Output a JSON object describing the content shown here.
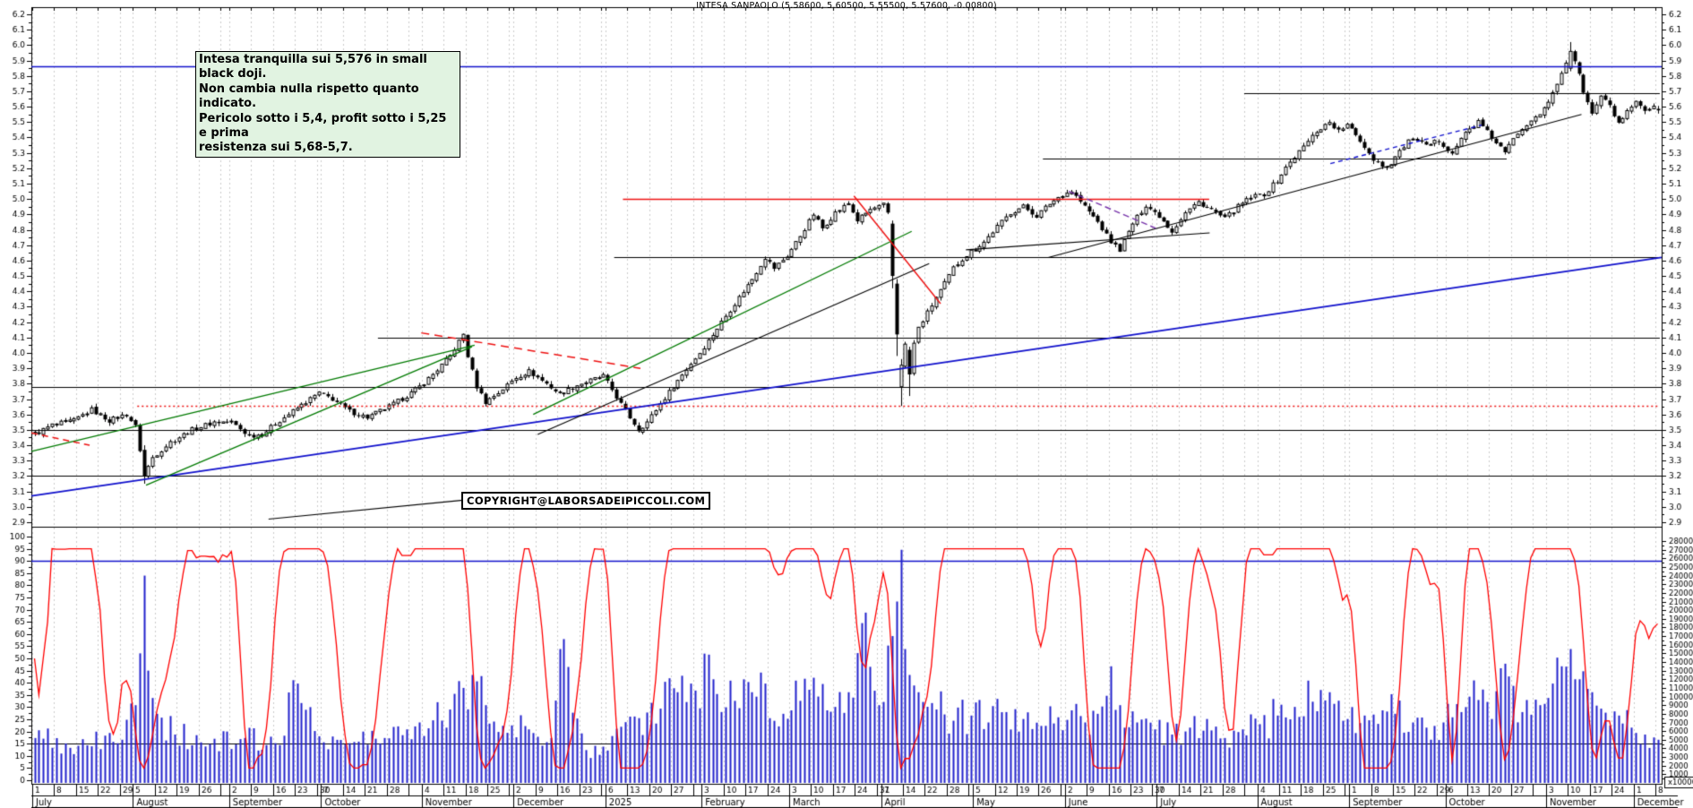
{
  "window": {
    "title": "INTESA SANPAOLO (5.58600, 5.60500, 5.55500, 5.57600, -0.00800)"
  },
  "annotation": {
    "text": "Intesa tranquilla sui 5,576 in small black doji.\nNon cambia nulla rispetto quanto indicato.\nPericolo sotto i 5,4, profit sotto i 5,25 e prima\nresistenza sui 5,68-5,7.",
    "background": "#e1f3e1"
  },
  "copyright": {
    "text": "COPYRIGHT@LABORSADEIPICCOLI.COM"
  },
  "chart_data": {
    "type": "candlestick",
    "symbol": "INTESA SANPAOLO",
    "last_quote": {
      "open": 5.586,
      "high": 5.605,
      "low": 5.555,
      "close": 5.576,
      "change": -0.008
    },
    "price_axis": {
      "min": 2.9,
      "max": 6.2,
      "step": 0.1
    },
    "oscillator_axis": {
      "min": 0,
      "max": 100,
      "step": 5
    },
    "volume_axis": {
      "min": 1000,
      "max": 28000,
      "step": 1000,
      "multiplier_label": "x10000"
    },
    "colors": {
      "candle": "#000000",
      "volume": "#2222cc",
      "oscillator": "#ff0000",
      "blue": "#1111cc",
      "green": "#007a00",
      "red": "#ee1111",
      "purple": "#7733aa",
      "grid": "#cccccc",
      "axis": "#000000"
    },
    "months": [
      {
        "label": "July",
        "days": 23,
        "weeks": [
          "1",
          "8",
          "15",
          "22",
          "29"
        ]
      },
      {
        "label": "August",
        "days": 22,
        "weeks": [
          "5",
          "12",
          "19",
          "26"
        ]
      },
      {
        "label": "September",
        "days": 21,
        "weeks": [
          "2",
          "9",
          "16",
          "23",
          "30"
        ]
      },
      {
        "label": "October",
        "days": 23,
        "weeks": [
          "7",
          "14",
          "21",
          "28"
        ]
      },
      {
        "label": "November",
        "days": 21,
        "weeks": [
          "4",
          "11",
          "18",
          "25"
        ]
      },
      {
        "label": "December",
        "days": 21,
        "weeks": [
          "2",
          "9",
          "16",
          "23"
        ]
      },
      {
        "label": "2025",
        "days": 22,
        "weeks": [
          "6",
          "13",
          "20",
          "27"
        ]
      },
      {
        "label": "February",
        "days": 20,
        "weeks": [
          "3",
          "10",
          "17",
          "24"
        ]
      },
      {
        "label": "March",
        "days": 21,
        "weeks": [
          "3",
          "10",
          "17",
          "24",
          "31"
        ]
      },
      {
        "label": "April",
        "days": 21,
        "weeks": [
          "7",
          "14",
          "22",
          "28"
        ]
      },
      {
        "label": "May",
        "days": 21,
        "weeks": [
          "5",
          "12",
          "19",
          "26"
        ]
      },
      {
        "label": "June",
        "days": 21,
        "weeks": [
          "2",
          "9",
          "16",
          "23",
          "30"
        ]
      },
      {
        "label": "July",
        "days": 23,
        "weeks": [
          "7",
          "14",
          "21",
          "28"
        ]
      },
      {
        "label": "August",
        "days": 21,
        "weeks": [
          "4",
          "11",
          "18",
          "25"
        ]
      },
      {
        "label": "September",
        "days": 22,
        "weeks": [
          "1",
          "8",
          "15",
          "22",
          "29"
        ]
      },
      {
        "label": "October",
        "days": 23,
        "weeks": [
          "6",
          "13",
          "20",
          "27"
        ]
      },
      {
        "label": "November",
        "days": 20,
        "weeks": [
          "3",
          "10",
          "17",
          "24"
        ]
      },
      {
        "label": "December",
        "days": 6,
        "weeks": [
          "1",
          "8"
        ]
      }
    ],
    "price_anchors": [
      [
        0,
        3.47
      ],
      [
        4,
        3.53
      ],
      [
        9,
        3.56
      ],
      [
        13,
        3.63
      ],
      [
        17,
        3.56
      ],
      [
        21,
        3.6
      ],
      [
        23,
        3.52
      ],
      [
        24,
        3.37
      ],
      [
        25,
        3.2
      ],
      [
        27,
        3.32
      ],
      [
        31,
        3.42
      ],
      [
        36,
        3.5
      ],
      [
        41,
        3.55
      ],
      [
        45,
        3.55
      ],
      [
        49,
        3.46
      ],
      [
        52,
        3.47
      ],
      [
        56,
        3.56
      ],
      [
        61,
        3.66
      ],
      [
        65,
        3.74
      ],
      [
        68,
        3.7
      ],
      [
        72,
        3.62
      ],
      [
        76,
        3.58
      ],
      [
        81,
        3.65
      ],
      [
        85,
        3.72
      ],
      [
        88,
        3.78
      ],
      [
        91,
        3.86
      ],
      [
        95,
        3.98
      ],
      [
        98,
        4.12
      ],
      [
        99,
        3.98
      ],
      [
        101,
        3.78
      ],
      [
        103,
        3.68
      ],
      [
        106,
        3.74
      ],
      [
        110,
        3.84
      ],
      [
        113,
        3.88
      ],
      [
        117,
        3.8
      ],
      [
        120,
        3.73
      ],
      [
        124,
        3.79
      ],
      [
        128,
        3.83
      ],
      [
        130,
        3.85
      ],
      [
        132,
        3.76
      ],
      [
        135,
        3.62
      ],
      [
        138,
        3.5
      ],
      [
        140,
        3.55
      ],
      [
        143,
        3.67
      ],
      [
        147,
        3.82
      ],
      [
        150,
        3.93
      ],
      [
        152,
        4.0
      ],
      [
        155,
        4.12
      ],
      [
        158,
        4.24
      ],
      [
        161,
        4.36
      ],
      [
        164,
        4.48
      ],
      [
        167,
        4.62
      ],
      [
        169,
        4.55
      ],
      [
        172,
        4.63
      ],
      [
        175,
        4.76
      ],
      [
        178,
        4.9
      ],
      [
        180,
        4.81
      ],
      [
        183,
        4.91
      ],
      [
        186,
        4.97
      ],
      [
        188,
        4.86
      ],
      [
        191,
        4.93
      ],
      [
        194,
        4.96
      ],
      [
        195,
        4.9
      ],
      [
        196,
        4.5
      ],
      [
        197,
        4.12
      ],
      [
        198,
        3.92
      ],
      [
        199,
        4.05
      ],
      [
        200,
        3.86
      ],
      [
        201,
        4.06
      ],
      [
        202,
        4.16
      ],
      [
        204,
        4.26
      ],
      [
        206,
        4.36
      ],
      [
        208,
        4.45
      ],
      [
        210,
        4.55
      ],
      [
        212,
        4.61
      ],
      [
        214,
        4.66
      ],
      [
        217,
        4.72
      ],
      [
        220,
        4.82
      ],
      [
        223,
        4.91
      ],
      [
        226,
        4.95
      ],
      [
        229,
        4.89
      ],
      [
        232,
        4.97
      ],
      [
        235,
        5.03
      ],
      [
        237,
        5.05
      ],
      [
        240,
        4.95
      ],
      [
        243,
        4.85
      ],
      [
        246,
        4.72
      ],
      [
        248,
        4.67
      ],
      [
        251,
        4.84
      ],
      [
        254,
        4.96
      ],
      [
        257,
        4.89
      ],
      [
        260,
        4.79
      ],
      [
        263,
        4.91
      ],
      [
        266,
        4.98
      ],
      [
        269,
        4.93
      ],
      [
        272,
        4.87
      ],
      [
        275,
        4.95
      ],
      [
        278,
        5.01
      ],
      [
        281,
        5.03
      ],
      [
        284,
        5.12
      ],
      [
        287,
        5.24
      ],
      [
        290,
        5.34
      ],
      [
        293,
        5.44
      ],
      [
        296,
        5.5
      ],
      [
        298,
        5.44
      ],
      [
        300,
        5.48
      ],
      [
        303,
        5.38
      ],
      [
        306,
        5.26
      ],
      [
        309,
        5.2
      ],
      [
        312,
        5.31
      ],
      [
        315,
        5.4
      ],
      [
        318,
        5.34
      ],
      [
        321,
        5.38
      ],
      [
        324,
        5.3
      ],
      [
        327,
        5.43
      ],
      [
        330,
        5.5
      ],
      [
        333,
        5.4
      ],
      [
        336,
        5.3
      ],
      [
        339,
        5.43
      ],
      [
        342,
        5.52
      ],
      [
        345,
        5.58
      ],
      [
        347,
        5.68
      ],
      [
        349,
        5.82
      ],
      [
        351,
        5.96
      ],
      [
        352,
        5.9
      ],
      [
        354,
        5.7
      ],
      [
        356,
        5.55
      ],
      [
        358,
        5.67
      ],
      [
        360,
        5.6
      ],
      [
        362,
        5.49
      ],
      [
        364,
        5.56
      ],
      [
        366,
        5.62
      ],
      [
        368,
        5.57
      ],
      [
        370,
        5.59
      ],
      [
        371,
        5.576
      ]
    ],
    "candle_overrides": {
      "25": [
        3.37,
        3.4,
        3.15,
        3.2
      ],
      "196": [
        4.84,
        4.86,
        4.42,
        4.5
      ],
      "197": [
        4.45,
        4.48,
        3.98,
        4.12
      ],
      "198": [
        3.78,
        3.96,
        3.655,
        3.92
      ],
      "200": [
        4.02,
        4.04,
        3.72,
        3.86
      ],
      "351": [
        5.85,
        6.02,
        5.83,
        5.96
      ],
      "371": [
        5.586,
        5.605,
        5.555,
        5.576
      ]
    },
    "volume_anchors": [
      [
        0,
        5200
      ],
      [
        10,
        4300
      ],
      [
        20,
        5000
      ],
      [
        23,
        9000
      ],
      [
        24,
        15000
      ],
      [
        25,
        24000
      ],
      [
        26,
        13000
      ],
      [
        28,
        8000
      ],
      [
        32,
        5600
      ],
      [
        40,
        4500
      ],
      [
        48,
        5200
      ],
      [
        55,
        4600
      ],
      [
        60,
        11500
      ],
      [
        65,
        5400
      ],
      [
        72,
        4600
      ],
      [
        80,
        5200
      ],
      [
        85,
        6200
      ],
      [
        88,
        7000
      ],
      [
        95,
        8500
      ],
      [
        98,
        11000
      ],
      [
        100,
        12500
      ],
      [
        103,
        9000
      ],
      [
        108,
        5800
      ],
      [
        113,
        6200
      ],
      [
        118,
        5200
      ],
      [
        120,
        15500
      ],
      [
        126,
        3800
      ],
      [
        130,
        4200
      ],
      [
        134,
        6500
      ],
      [
        138,
        7500
      ],
      [
        143,
        8600
      ],
      [
        147,
        10500
      ],
      [
        150,
        11500
      ],
      [
        155,
        12000
      ],
      [
        160,
        9500
      ],
      [
        164,
        10500
      ],
      [
        167,
        11500
      ],
      [
        171,
        8000
      ],
      [
        175,
        9500
      ],
      [
        179,
        10000
      ],
      [
        183,
        8800
      ],
      [
        186,
        10500
      ],
      [
        189,
        18500
      ],
      [
        193,
        9000
      ],
      [
        196,
        17000
      ],
      [
        197,
        21000
      ],
      [
        198,
        27000
      ],
      [
        199,
        15500
      ],
      [
        200,
        12500
      ],
      [
        202,
        10500
      ],
      [
        206,
        8500
      ],
      [
        210,
        7200
      ],
      [
        214,
        7800
      ],
      [
        218,
        7000
      ],
      [
        222,
        8200
      ],
      [
        226,
        7400
      ],
      [
        230,
        6600
      ],
      [
        234,
        7600
      ],
      [
        237,
        8400
      ],
      [
        240,
        7000
      ],
      [
        243,
        8000
      ],
      [
        246,
        13500
      ],
      [
        248,
        9000
      ],
      [
        252,
        7000
      ],
      [
        256,
        6200
      ],
      [
        260,
        5600
      ],
      [
        264,
        6400
      ],
      [
        268,
        7400
      ],
      [
        272,
        5200
      ],
      [
        276,
        6200
      ],
      [
        280,
        6800
      ],
      [
        284,
        7800
      ],
      [
        288,
        8800
      ],
      [
        292,
        9400
      ],
      [
        296,
        10500
      ],
      [
        300,
        7400
      ],
      [
        304,
        7800
      ],
      [
        308,
        8400
      ],
      [
        311,
        8000
      ],
      [
        315,
        7000
      ],
      [
        318,
        6400
      ],
      [
        322,
        7000
      ],
      [
        326,
        8200
      ],
      [
        330,
        9600
      ],
      [
        333,
        7400
      ],
      [
        336,
        13800
      ],
      [
        340,
        8200
      ],
      [
        344,
        9000
      ],
      [
        347,
        11500
      ],
      [
        349,
        13500
      ],
      [
        351,
        15500
      ],
      [
        353,
        12000
      ],
      [
        356,
        10500
      ],
      [
        358,
        8600
      ],
      [
        362,
        7800
      ],
      [
        365,
        6400
      ],
      [
        368,
        5600
      ],
      [
        371,
        5000
      ]
    ],
    "price_lines": [
      {
        "price": 5.86,
        "from_day": null,
        "to_day": null,
        "color": "#1111cc",
        "style": "solid",
        "width": 1.6
      },
      {
        "price": 5.69,
        "from_day": 277,
        "to_day": 372,
        "color": "#000000",
        "style": "solid",
        "width": 1.2
      },
      {
        "price": 5.26,
        "from_day": 231,
        "to_day": 337,
        "color": "#000000",
        "style": "solid",
        "width": 1.2
      },
      {
        "price": 5.0,
        "from_day": 135,
        "to_day": 269,
        "color": "#ee1111",
        "style": "solid",
        "width": 1.6
      },
      {
        "price": 4.62,
        "from_day": 133,
        "to_day": 372,
        "color": "#000000",
        "style": "solid",
        "width": 1.2
      },
      {
        "price": 4.1,
        "from_day": 79,
        "to_day": 372,
        "color": "#000000",
        "style": "solid",
        "width": 1.2
      },
      {
        "price": 3.78,
        "from_day": null,
        "to_day": null,
        "color": "#000000",
        "style": "solid",
        "width": 1.2
      },
      {
        "price": 3.655,
        "from_day": 24,
        "to_day": 372,
        "color": "#ee1111",
        "style": "dotted",
        "width": 1.4
      },
      {
        "price": 3.5,
        "from_day": null,
        "to_day": null,
        "color": "#000000",
        "style": "solid",
        "width": 1.2
      },
      {
        "price": 3.2,
        "from_day": null,
        "to_day": null,
        "color": "#000000",
        "style": "solid",
        "width": 1.2
      }
    ],
    "trend_lines": [
      {
        "d1": -0.7,
        "p1": 3.07,
        "d2": 372,
        "p2": 4.62,
        "color": "#1111cc",
        "dash": null,
        "width": 1.8
      },
      {
        "d1": -0.7,
        "p1": 3.36,
        "d2": 100.6,
        "p2": 4.05,
        "color": "#007a00",
        "dash": null,
        "width": 1.3
      },
      {
        "d1": 25.5,
        "p1": 3.14,
        "d2": 100,
        "p2": 4.04,
        "color": "#007a00",
        "dash": null,
        "width": 1.3
      },
      {
        "d1": 114,
        "p1": 3.6,
        "d2": 200.5,
        "p2": 4.79,
        "color": "#007a00",
        "dash": null,
        "width": 1.3
      },
      {
        "d1": 115,
        "p1": 3.47,
        "d2": 204.5,
        "p2": 4.58,
        "color": "#000000",
        "dash": null,
        "width": 1.1
      },
      {
        "d1": 231.7,
        "p1": 4.62,
        "d2": 353.6,
        "p2": 5.55,
        "color": "#000000",
        "dash": null,
        "width": 1.1
      },
      {
        "d1": 212.9,
        "p1": 4.67,
        "d2": 268.6,
        "p2": 4.78,
        "color": "#000000",
        "dash": null,
        "width": 1.1
      },
      {
        "d1": 53.5,
        "p1": 2.92,
        "d2": 100.6,
        "p2": 3.05,
        "color": "#000000",
        "dash": null,
        "width": 1.1
      },
      {
        "d1": 187.3,
        "p1": 5.02,
        "d2": 207.1,
        "p2": 4.32,
        "color": "#ee1111",
        "dash": null,
        "width": 1.4
      },
      {
        "d1": 88.4,
        "p1": 4.13,
        "d2": 138.5,
        "p2": 3.9,
        "color": "#ee1111",
        "dash": [
          9,
          6
        ],
        "width": 1.5
      },
      {
        "d1": -0.7,
        "p1": 3.48,
        "d2": 12.6,
        "p2": 3.4,
        "color": "#ee1111",
        "dash": [
          7,
          5
        ],
        "width": 1.4
      },
      {
        "d1": 236.4,
        "p1": 5.05,
        "d2": 256.3,
        "p2": 4.81,
        "color": "#7733aa",
        "dash": [
          7,
          4
        ],
        "width": 1.4
      },
      {
        "d1": 296.2,
        "p1": 5.23,
        "d2": 330.8,
        "p2": 5.48,
        "color": "#1111cc",
        "dash": [
          5,
          4
        ],
        "width": 1.4
      }
    ],
    "oscillator_lines": [
      {
        "value": 90,
        "color": "#1111cc",
        "width": 1.5
      },
      {
        "value": 15,
        "color": "#000000",
        "width": 1.2
      }
    ]
  }
}
